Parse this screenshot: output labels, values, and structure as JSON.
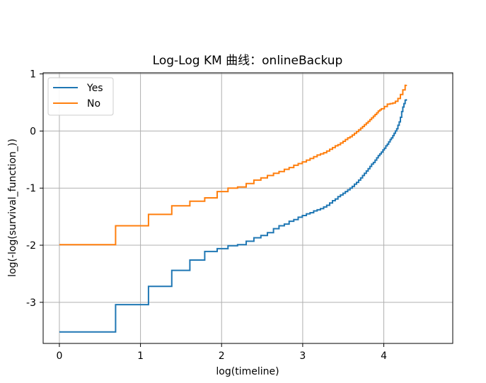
{
  "chart_data": {
    "type": "line",
    "step": true,
    "title": "Log-Log KM 曲线：onlineBackup",
    "xlabel": "log(timeline)",
    "ylabel": "log(-log(survival_function_))",
    "xlim": [
      -0.2,
      4.85
    ],
    "ylim": [
      -3.72,
      1.02
    ],
    "xticks": [
      0,
      1,
      2,
      3,
      4
    ],
    "xtick_labels": [
      "0",
      "1",
      "2",
      "3",
      "4"
    ],
    "yticks": [
      1,
      0,
      -1,
      -2,
      -3
    ],
    "ytick_labels": [
      "1",
      "0",
      "-1",
      "-2",
      "-3"
    ],
    "grid": true,
    "legend_position": "upper left",
    "series": [
      {
        "name": "Yes",
        "color": "#1f77b4",
        "points": [
          [
            0.0,
            -3.52
          ],
          [
            0.693,
            -3.04
          ],
          [
            1.099,
            -2.72
          ],
          [
            1.386,
            -2.44
          ],
          [
            1.609,
            -2.26
          ],
          [
            1.792,
            -2.11
          ],
          [
            1.946,
            -2.06
          ],
          [
            2.079,
            -2.01
          ],
          [
            2.197,
            -1.99
          ],
          [
            2.303,
            -1.93
          ],
          [
            2.398,
            -1.87
          ],
          [
            2.485,
            -1.83
          ],
          [
            2.565,
            -1.78
          ],
          [
            2.64,
            -1.71
          ],
          [
            2.708,
            -1.66
          ],
          [
            2.773,
            -1.63
          ],
          [
            2.833,
            -1.58
          ],
          [
            2.89,
            -1.55
          ],
          [
            2.944,
            -1.51
          ],
          [
            2.996,
            -1.48
          ],
          [
            3.045,
            -1.45
          ],
          [
            3.091,
            -1.43
          ],
          [
            3.135,
            -1.4
          ],
          [
            3.178,
            -1.38
          ],
          [
            3.219,
            -1.36
          ],
          [
            3.258,
            -1.33
          ],
          [
            3.296,
            -1.3
          ],
          [
            3.332,
            -1.26
          ],
          [
            3.367,
            -1.22
          ],
          [
            3.401,
            -1.19
          ],
          [
            3.434,
            -1.15
          ],
          [
            3.466,
            -1.12
          ],
          [
            3.497,
            -1.09
          ],
          [
            3.526,
            -1.06
          ],
          [
            3.555,
            -1.03
          ],
          [
            3.584,
            -1.0
          ],
          [
            3.611,
            -0.97
          ],
          [
            3.638,
            -0.93
          ],
          [
            3.664,
            -0.9
          ],
          [
            3.689,
            -0.86
          ],
          [
            3.714,
            -0.82
          ],
          [
            3.738,
            -0.78
          ],
          [
            3.761,
            -0.74
          ],
          [
            3.784,
            -0.7
          ],
          [
            3.807,
            -0.66
          ],
          [
            3.829,
            -0.62
          ],
          [
            3.85,
            -0.58
          ],
          [
            3.871,
            -0.55
          ],
          [
            3.892,
            -0.51
          ],
          [
            3.912,
            -0.47
          ],
          [
            3.932,
            -0.43
          ],
          [
            3.951,
            -0.4
          ],
          [
            3.97,
            -0.37
          ],
          [
            3.989,
            -0.33
          ],
          [
            4.007,
            -0.3
          ],
          [
            4.025,
            -0.26
          ],
          [
            4.043,
            -0.23
          ],
          [
            4.06,
            -0.19
          ],
          [
            4.078,
            -0.15
          ],
          [
            4.094,
            -0.12
          ],
          [
            4.111,
            -0.08
          ],
          [
            4.127,
            -0.04
          ],
          [
            4.143,
            0.0
          ],
          [
            4.159,
            0.04
          ],
          [
            4.174,
            0.1
          ],
          [
            4.19,
            0.16
          ],
          [
            4.205,
            0.24
          ],
          [
            4.22,
            0.34
          ],
          [
            4.234,
            0.42
          ],
          [
            4.248,
            0.48
          ],
          [
            4.263,
            0.54
          ],
          [
            4.277,
            0.56
          ]
        ]
      },
      {
        "name": "No",
        "color": "#ff7f0e",
        "points": [
          [
            0.0,
            -1.99
          ],
          [
            0.693,
            -1.66
          ],
          [
            1.099,
            -1.46
          ],
          [
            1.386,
            -1.31
          ],
          [
            1.609,
            -1.23
          ],
          [
            1.792,
            -1.17
          ],
          [
            1.946,
            -1.06
          ],
          [
            2.079,
            -1.0
          ],
          [
            2.197,
            -0.98
          ],
          [
            2.303,
            -0.92
          ],
          [
            2.398,
            -0.86
          ],
          [
            2.485,
            -0.82
          ],
          [
            2.565,
            -0.78
          ],
          [
            2.64,
            -0.74
          ],
          [
            2.708,
            -0.71
          ],
          [
            2.773,
            -0.67
          ],
          [
            2.833,
            -0.64
          ],
          [
            2.89,
            -0.6
          ],
          [
            2.944,
            -0.57
          ],
          [
            2.996,
            -0.54
          ],
          [
            3.045,
            -0.51
          ],
          [
            3.091,
            -0.48
          ],
          [
            3.135,
            -0.45
          ],
          [
            3.178,
            -0.42
          ],
          [
            3.219,
            -0.4
          ],
          [
            3.258,
            -0.38
          ],
          [
            3.296,
            -0.35
          ],
          [
            3.332,
            -0.32
          ],
          [
            3.367,
            -0.29
          ],
          [
            3.401,
            -0.26
          ],
          [
            3.434,
            -0.24
          ],
          [
            3.466,
            -0.21
          ],
          [
            3.497,
            -0.18
          ],
          [
            3.526,
            -0.15
          ],
          [
            3.555,
            -0.12
          ],
          [
            3.584,
            -0.1
          ],
          [
            3.611,
            -0.07
          ],
          [
            3.638,
            -0.04
          ],
          [
            3.664,
            -0.01
          ],
          [
            3.689,
            0.02
          ],
          [
            3.714,
            0.05
          ],
          [
            3.738,
            0.08
          ],
          [
            3.761,
            0.11
          ],
          [
            3.784,
            0.14
          ],
          [
            3.807,
            0.17
          ],
          [
            3.829,
            0.2
          ],
          [
            3.85,
            0.23
          ],
          [
            3.871,
            0.26
          ],
          [
            3.892,
            0.29
          ],
          [
            3.912,
            0.32
          ],
          [
            3.932,
            0.35
          ],
          [
            3.951,
            0.37
          ],
          [
            3.97,
            0.39
          ],
          [
            4.007,
            0.43
          ],
          [
            4.043,
            0.47
          ],
          [
            4.078,
            0.48
          ],
          [
            4.111,
            0.49
          ],
          [
            4.143,
            0.52
          ],
          [
            4.174,
            0.57
          ],
          [
            4.205,
            0.64
          ],
          [
            4.234,
            0.72
          ],
          [
            4.263,
            0.8
          ],
          [
            4.277,
            0.81
          ]
        ]
      }
    ]
  }
}
